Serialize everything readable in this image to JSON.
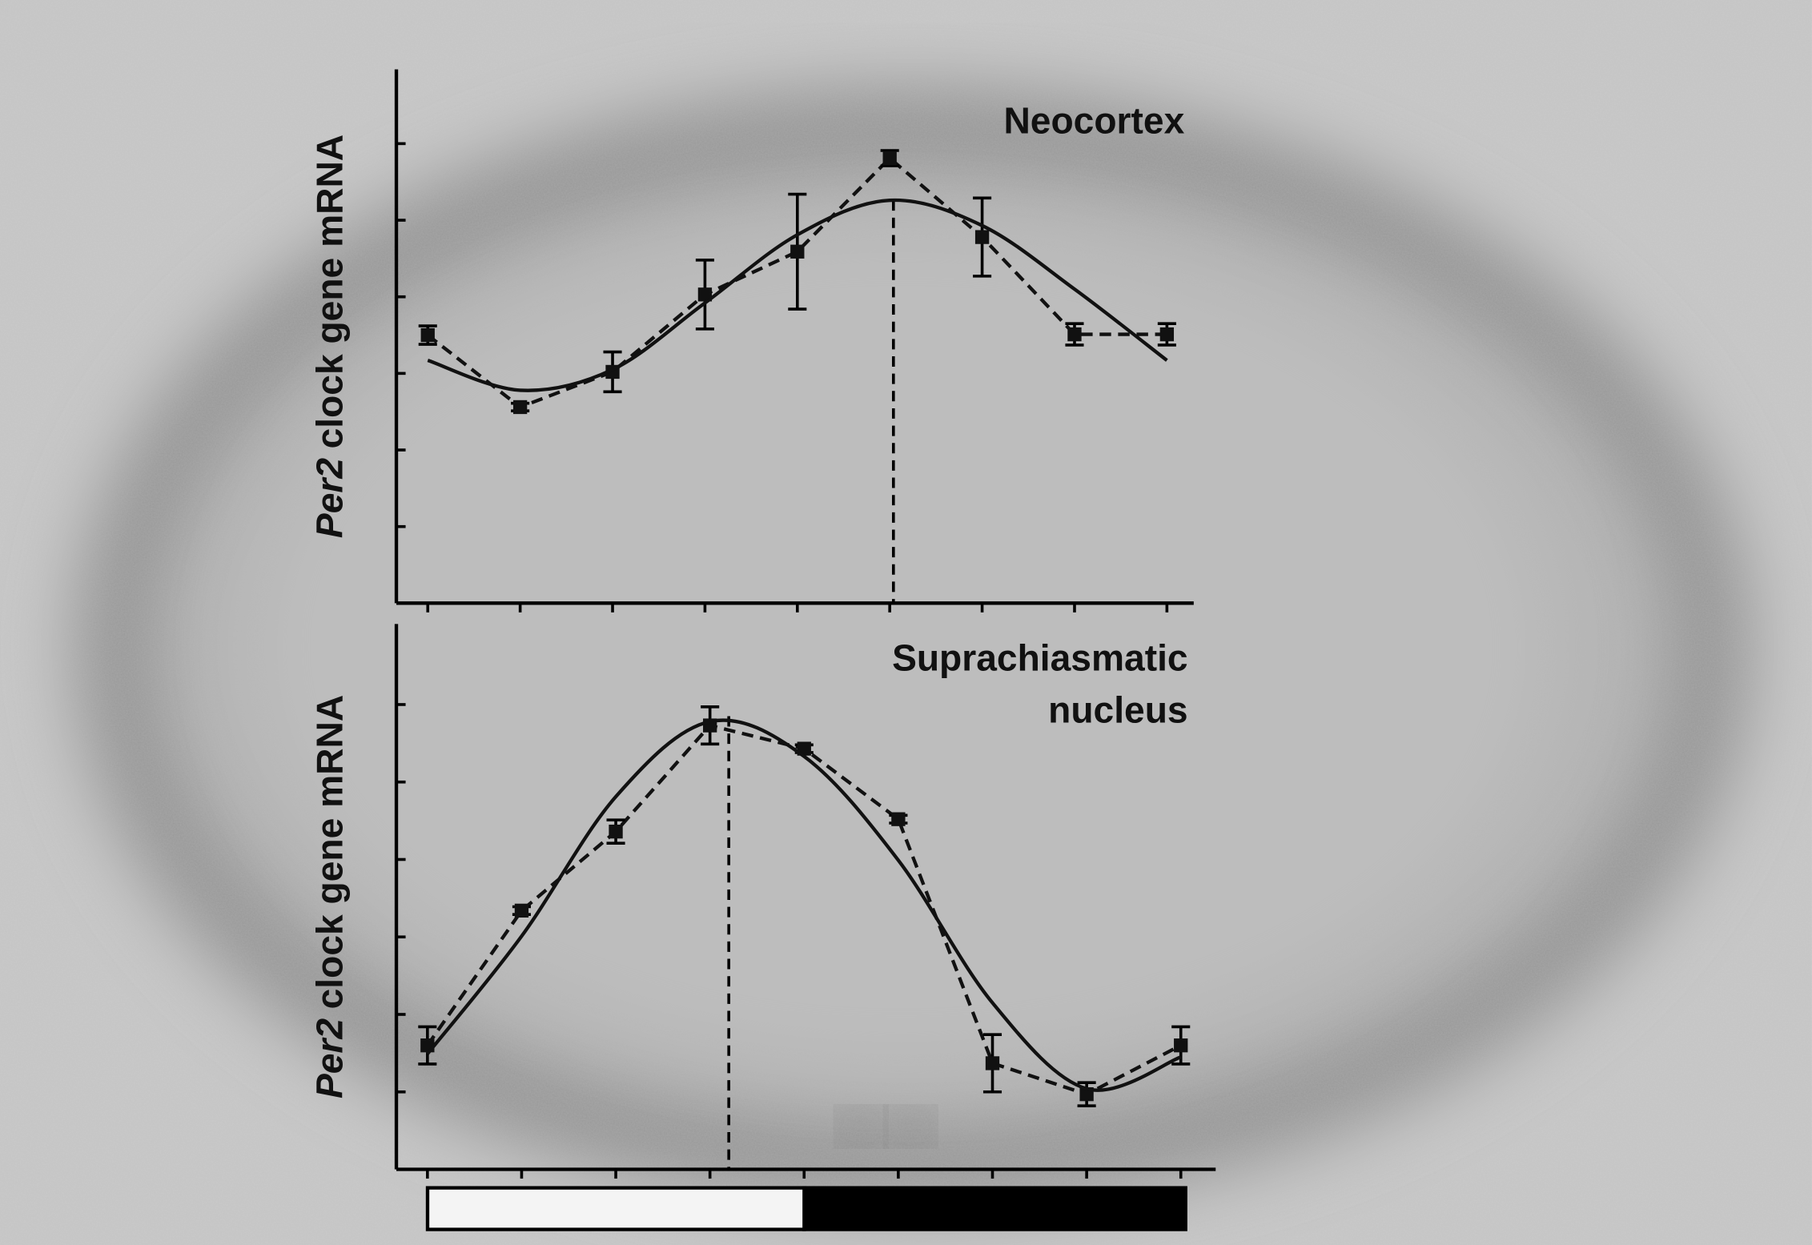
{
  "chart_data": [
    {
      "type": "line",
      "title": [
        "Neocortex"
      ],
      "ylabel": [
        "Per2",
        "clock gene mRNA"
      ],
      "x": [
        0,
        1,
        2,
        3,
        4,
        5,
        6,
        7,
        8
      ],
      "xlim": [
        -0.34,
        8.29
      ],
      "xticks": [
        0,
        1,
        2,
        3,
        4,
        5,
        6,
        7,
        8
      ],
      "ylim": [
        0,
        6.97
      ],
      "yticks": [
        0,
        1,
        2,
        3,
        4,
        5,
        6
      ],
      "series": [
        {
          "color": "#111111",
          "style": "dashed",
          "values": [
            3.5,
            2.56,
            3.02,
            4.03,
            4.59,
            5.81,
            4.78,
            3.51,
            3.51
          ],
          "errors": [
            0.12,
            0.05,
            0.26,
            0.45,
            0.75,
            0.1,
            0.51,
            0.14,
            0.14
          ]
        },
        {
          "color": "#111111",
          "style": "solid",
          "smooth": true,
          "values": [
            3.17,
            2.78,
            3.05,
            3.92,
            4.81,
            5.26,
            4.93,
            4.1,
            3.17
          ]
        }
      ],
      "peak": {
        "x": 5.04,
        "y": 5.26
      }
    },
    {
      "type": "line",
      "title": [
        "Suprachiasmatic",
        "nucleus"
      ],
      "ylabel": [
        "Per2",
        "clock gene mRNA"
      ],
      "x": [
        0,
        1,
        2,
        3,
        4,
        5,
        6,
        7,
        8
      ],
      "xlim": [
        -0.33,
        8.37
      ],
      "xticks": [
        0,
        1,
        2,
        3,
        4,
        5,
        6,
        7,
        8
      ],
      "ylim": [
        0,
        7.04
      ],
      "yticks": [
        0,
        1,
        2,
        3,
        4,
        5,
        6
      ],
      "series": [
        {
          "color": "#111111",
          "style": "dashed",
          "values": [
            1.6,
            3.34,
            4.36,
            5.73,
            5.43,
            4.52,
            1.37,
            0.97,
            1.6
          ],
          "errors": [
            0.24,
            0.05,
            0.15,
            0.24,
            0.05,
            0.05,
            0.37,
            0.15,
            0.24
          ]
        },
        {
          "color": "#111111",
          "style": "solid",
          "smooth": true,
          "values": [
            1.49,
            3.01,
            4.81,
            5.78,
            5.33,
            3.99,
            2.15,
            1.04,
            1.45
          ]
        }
      ],
      "peak": {
        "x": 3.2,
        "y": 5.85
      }
    }
  ]
}
